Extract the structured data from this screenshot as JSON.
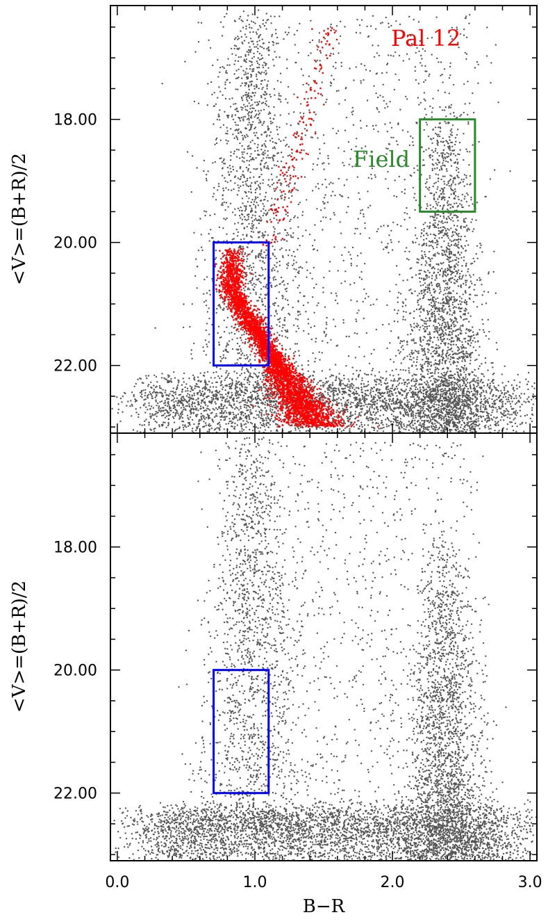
{
  "chart_data": [
    {
      "type": "scatter",
      "panel": "top",
      "xlabel": "B−R",
      "ylabel": "<V>=(B+R)/2",
      "xlim": [
        -0.05,
        3.05
      ],
      "ylim": [
        23.1,
        16.15
      ],
      "y_inverted": true,
      "yticks": [
        "18.00",
        "20.00",
        "22.00"
      ],
      "annotations": [
        {
          "text": "Pal 12",
          "color": "#ff0000",
          "at": [
            2.35,
            16.6
          ]
        },
        {
          "text": "Field",
          "color": "#2a8a2a",
          "at": [
            1.95,
            18.85
          ]
        }
      ],
      "boxes": [
        {
          "name": "cluster-selection",
          "color": "#0000ff",
          "x": [
            0.7,
            1.1
          ],
          "y": [
            20.0,
            22.0
          ]
        },
        {
          "name": "field-selection",
          "color": "#2a8a2a",
          "x": [
            2.2,
            2.6
          ],
          "y": [
            18.0,
            19.5
          ]
        }
      ],
      "series": [
        {
          "color": "#555555",
          "description_points": "field stars: vertical plume near B-R~1.0, red plume near B-R~2.4, dense horizontal band at V~22.5-23"
        },
        {
          "color": "#ff0000",
          "description_points": "cluster members: main-sequence turnoff near B-R~0.8-1.0 at V~20-22, main sequence extending to B-R~1.6 at V~23, sparse giant branch"
        }
      ]
    },
    {
      "type": "scatter",
      "panel": "bottom",
      "xlabel": "B−R",
      "ylabel": "<V>=(B+R)/2",
      "xlim": [
        -0.05,
        3.05
      ],
      "ylim": [
        23.1,
        16.15
      ],
      "y_inverted": true,
      "xticks": [
        "0.0",
        "1.0",
        "2.0",
        "3.0"
      ],
      "yticks": [
        "18.00",
        "20.00",
        "22.00"
      ],
      "boxes": [
        {
          "name": "cluster-selection",
          "color": "#0000ff",
          "x": [
            0.7,
            1.1
          ],
          "y": [
            20.0,
            22.0
          ]
        }
      ],
      "series": [
        {
          "color": "#555555"
        }
      ]
    }
  ]
}
